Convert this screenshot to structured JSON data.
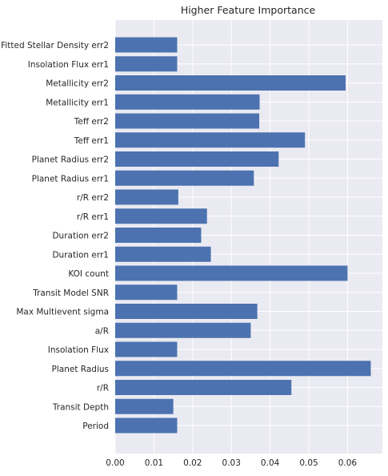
{
  "chart_data": {
    "type": "bar",
    "orientation": "horizontal",
    "title": "Higher Feature Importance",
    "xlabel": "",
    "ylabel": "",
    "xlim": [
      0,
      0.069
    ],
    "xticks": [
      "0.00",
      "0.01",
      "0.02",
      "0.03",
      "0.04",
      "0.05",
      "0.06"
    ],
    "grid": true,
    "bar_color": "#4c72b0",
    "background_color": "#eaeaf2",
    "categories": [
      "Period",
      "Transit Depth",
      "r/R",
      "Planet Radius",
      "Insolation Flux",
      "a/R",
      "Max Multievent sigma",
      "Transit Model SNR",
      "KOI count",
      "Duration err1",
      "Duration err2",
      "r/R err1",
      "r/R err2",
      "Planet Radius err1",
      "Planet Radius err2",
      "Teff err1",
      "Teff err2",
      "Metallicity err1",
      "Metallicity err2",
      "Insolation Flux err1",
      "Fitted Stellar Density err2"
    ],
    "values": [
      0.016,
      0.015,
      0.0455,
      0.066,
      0.016,
      0.035,
      0.0367,
      0.016,
      0.06,
      0.0247,
      0.0222,
      0.0237,
      0.0163,
      0.0358,
      0.0422,
      0.049,
      0.0372,
      0.0373,
      0.0595,
      0.016,
      0.016
    ]
  }
}
